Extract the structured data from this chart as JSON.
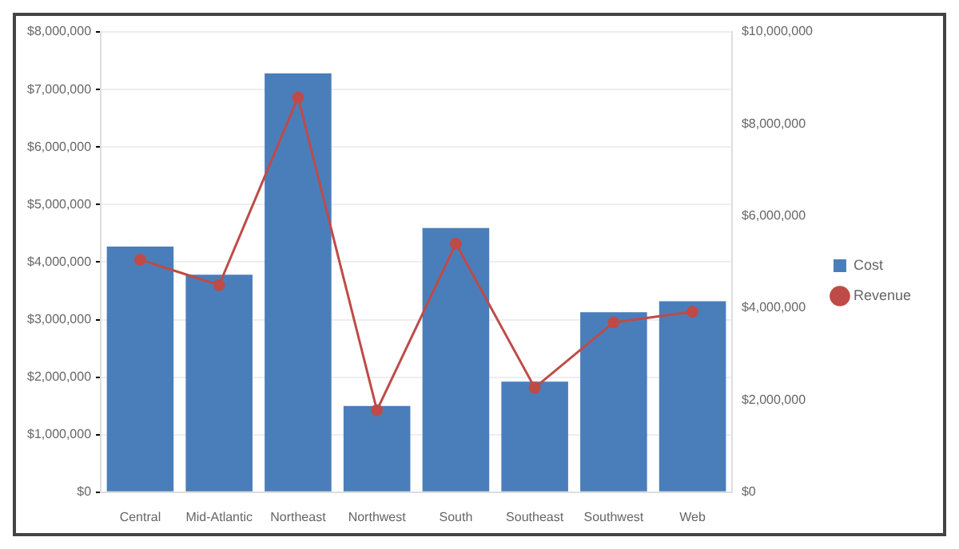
{
  "chart_data": {
    "type": "bar",
    "categories": [
      "Central",
      "Mid-Atlantic",
      "Northeast",
      "Northwest",
      "South",
      "Southeast",
      "Southwest",
      "Web"
    ],
    "series": [
      {
        "name": "Cost",
        "color": "#4a7ebb",
        "values": [
          4270000,
          3780000,
          7280000,
          1500000,
          4590000,
          1920000,
          3130000,
          3320000
        ]
      },
      {
        "name": "Revenue",
        "type": "line",
        "axis": "y2",
        "color": "#be4b48",
        "values": [
          5050000,
          4500000,
          8580000,
          1780000,
          5400000,
          2270000,
          3690000,
          3920000
        ]
      }
    ],
    "ylim": [
      0,
      8000000
    ],
    "yticks": [
      {
        "value": 0,
        "label": "$0"
      },
      {
        "value": 1000000,
        "label": "$1,000,000"
      },
      {
        "value": 2000000,
        "label": "$2,000,000"
      },
      {
        "value": 3000000,
        "label": "$3,000,000"
      },
      {
        "value": 4000000,
        "label": "$4,000,000"
      },
      {
        "value": 5000000,
        "label": "$5,000,000"
      },
      {
        "value": 6000000,
        "label": "$6,000,000"
      },
      {
        "value": 7000000,
        "label": "$7,000,000"
      },
      {
        "value": 8000000,
        "label": "$8,000,000"
      }
    ],
    "y2lim": [
      0,
      10000000
    ],
    "y2ticks": [
      {
        "value": 0,
        "label": "$0"
      },
      {
        "value": 2000000,
        "label": "$2,000,000"
      },
      {
        "value": 4000000,
        "label": "$4,000,000"
      },
      {
        "value": 6000000,
        "label": "$6,000,000"
      },
      {
        "value": 8000000,
        "label": "$8,000,000"
      },
      {
        "value": 10000000,
        "label": "$10,000,000"
      }
    ],
    "grid": "y",
    "legend": "right",
    "marker": "circle",
    "line_style": "solid"
  }
}
